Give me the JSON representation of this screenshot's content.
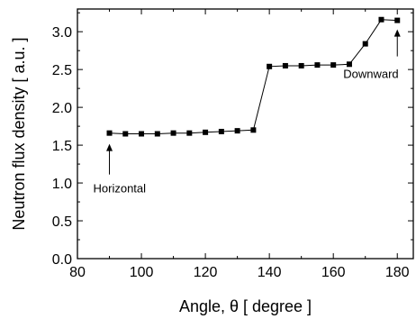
{
  "chart_data": {
    "type": "scatter",
    "xlabel": "Angle, θ [ degree ]",
    "ylabel": "Neutron flux density [ a.u. ]",
    "xlim": [
      80,
      185
    ],
    "ylim": [
      0.0,
      3.3
    ],
    "xticks": [
      80,
      100,
      120,
      140,
      160,
      180
    ],
    "xtick_labels": [
      "80",
      "100",
      "120",
      "140",
      "160",
      "180"
    ],
    "yticks": [
      0.0,
      0.5,
      1.0,
      1.5,
      2.0,
      2.5,
      3.0
    ],
    "ytick_labels": [
      "0.0",
      "0.5",
      "1.0",
      "1.5",
      "2.0",
      "2.5",
      "3.0"
    ],
    "grid": false,
    "series": [
      {
        "x": [
          90,
          95,
          100,
          105,
          110,
          115,
          120,
          125,
          130,
          135,
          140,
          145,
          150,
          155,
          160,
          165,
          170,
          175,
          180
        ],
        "y": [
          1.66,
          1.65,
          1.65,
          1.65,
          1.66,
          1.66,
          1.67,
          1.68,
          1.69,
          1.7,
          2.54,
          2.55,
          2.55,
          2.56,
          2.56,
          2.57,
          2.84,
          3.16,
          3.15
        ],
        "marker": "square",
        "line": true,
        "color": "#000000"
      }
    ],
    "annotations": [
      {
        "text": "Horizontal",
        "x": 90,
        "y": 1.66
      },
      {
        "text": "Downward",
        "x": 180,
        "y": 3.15
      }
    ]
  }
}
